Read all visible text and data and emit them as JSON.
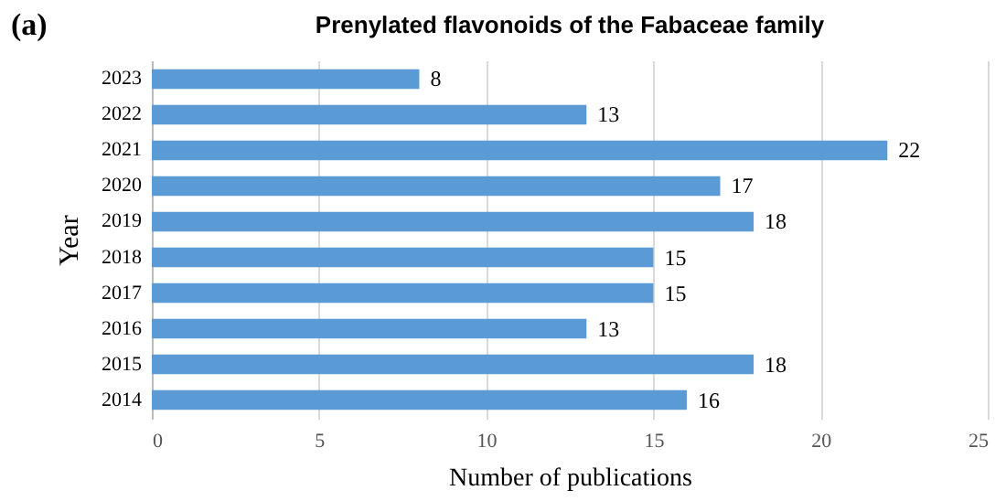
{
  "chart_data": {
    "type": "bar",
    "orientation": "horizontal",
    "title": "Prenylated flavonoids of the Fabaceae family",
    "annotations": [
      "(a)"
    ],
    "xlabel": "Number of publications",
    "ylabel": "Year",
    "categories": [
      "2023",
      "2022",
      "2021",
      "2020",
      "2019",
      "2018",
      "2017",
      "2016",
      "2015",
      "2014"
    ],
    "values": [
      8,
      13,
      22,
      17,
      18,
      15,
      15,
      13,
      18,
      16
    ],
    "color": "#5b9bd5",
    "xlim": [
      0,
      25
    ],
    "xticks": [
      0,
      5,
      10,
      15,
      20,
      25
    ],
    "grid": "x",
    "data_labels": true
  }
}
